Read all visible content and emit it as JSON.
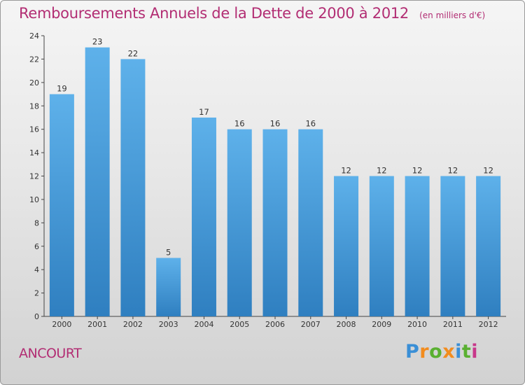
{
  "header": {
    "title": "Remboursements Annuels de la Dette de 2000 à 2012",
    "unit": "(en milliers d'€)"
  },
  "footer": {
    "commune": "ANCOURT"
  },
  "logo": {
    "text": "Proxiti",
    "letters": [
      {
        "char": "P",
        "color": "#3a8fd6"
      },
      {
        "char": "r",
        "color": "#f28c1e"
      },
      {
        "char": "o",
        "color": "#5ab031"
      },
      {
        "char": "x",
        "color": "#f28c1e"
      },
      {
        "char": "i",
        "color": "#3a8fd6"
      },
      {
        "char": "t",
        "color": "#5ab031"
      },
      {
        "char": "i",
        "color": "#c8388a"
      }
    ]
  },
  "colors": {
    "title": "#b22d73",
    "bar_light": "#5eb1ea",
    "bar_dark": "#2f7fc0"
  },
  "chart_data": {
    "type": "bar",
    "title": "Remboursements Annuels de la Dette de 2000 à 2012",
    "categories": [
      "2000",
      "2001",
      "2002",
      "2003",
      "2004",
      "2005",
      "2006",
      "2007",
      "2008",
      "2009",
      "2010",
      "2011",
      "2012"
    ],
    "values": [
      19,
      23,
      22,
      5,
      17,
      16,
      16,
      16,
      12,
      12,
      12,
      12,
      12
    ],
    "ylim": [
      0,
      24
    ],
    "yticks": [
      0,
      2,
      4,
      6,
      8,
      10,
      12,
      14,
      16,
      18,
      20,
      22,
      24
    ],
    "grid": false
  }
}
